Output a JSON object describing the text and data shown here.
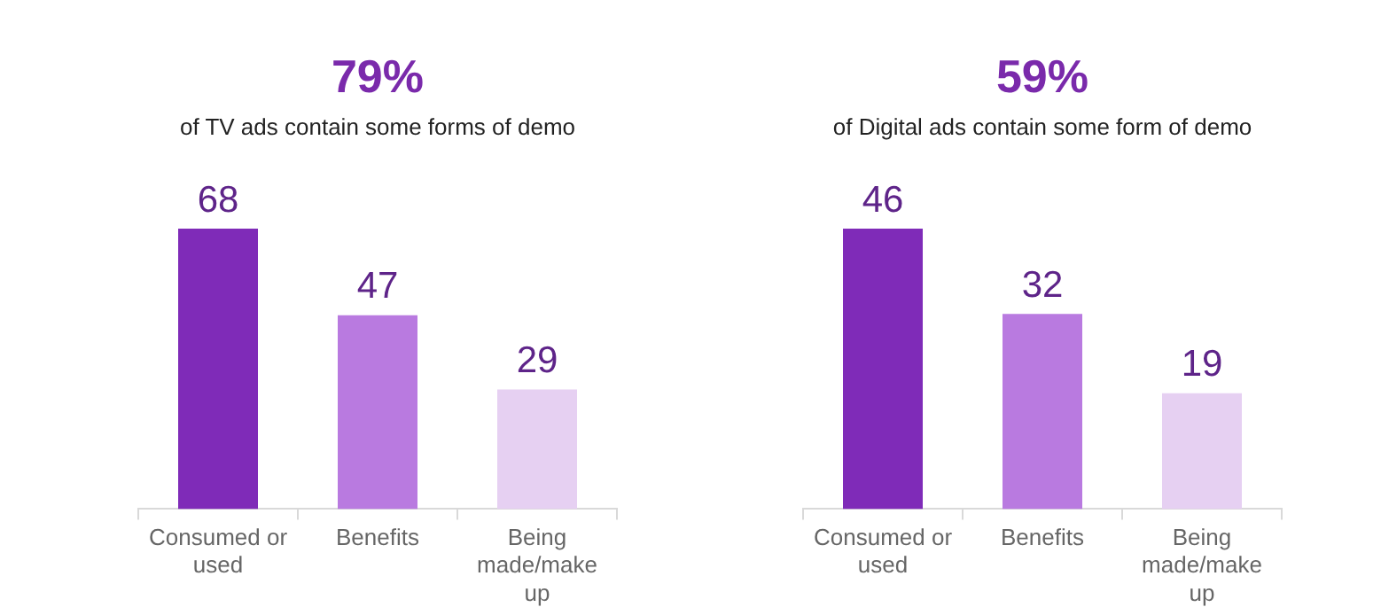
{
  "chart_data": [
    {
      "type": "bar",
      "title": "79%",
      "subtitle": "of TV ads contain some forms of demo",
      "categories": [
        "Consumed or used",
        "Benefits",
        "Being made/make up"
      ],
      "values": [
        68,
        47,
        29
      ],
      "colors": [
        "#7f2bb8",
        "#b97ae0",
        "#e6d0f2"
      ],
      "data_labels": true
    },
    {
      "type": "bar",
      "title": "59%",
      "subtitle": "of Digital ads contain some form of demo",
      "categories": [
        "Consumed or used",
        "Benefits",
        "Being made/make up"
      ],
      "values": [
        46,
        32,
        19
      ],
      "colors": [
        "#7f2bb8",
        "#b97ae0",
        "#e6d0f2"
      ],
      "data_labels": true
    }
  ]
}
